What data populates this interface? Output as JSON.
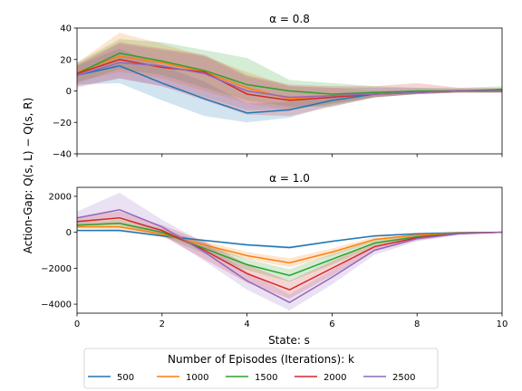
{
  "figure": {
    "ylabel": "Action-Gap: Q(s, L) − Q(s, R)",
    "xlabel": "State: s"
  },
  "legend": {
    "title": "Number of Episodes (Iterations): k",
    "placement": "lower-center"
  },
  "colors": {
    "500": "#1f77b4",
    "1000": "#ff7f0e",
    "1500": "#2ca02c",
    "2000": "#d62728",
    "2500": "#9467bd"
  },
  "chart_data": [
    {
      "type": "line",
      "title": "α = 0.8",
      "xlim": [
        0,
        10
      ],
      "ylim": [
        -40,
        40
      ],
      "xticks": [
        0,
        2,
        4,
        6,
        8,
        10
      ],
      "yticks": [
        -40,
        -20,
        0,
        20,
        40
      ],
      "show_xtick_labels": false,
      "x": [
        0,
        1,
        2,
        3,
        4,
        5,
        6,
        7,
        8,
        9,
        10
      ],
      "series": [
        {
          "name": "500",
          "values": [
            10,
            16,
            5,
            -5,
            -14,
            -12,
            -6,
            -2,
            -1,
            0,
            0
          ],
          "lower": [
            4,
            5,
            -6,
            -16,
            -20,
            -17,
            -9,
            -4,
            -2,
            -1,
            -1
          ],
          "upper": [
            16,
            27,
            16,
            6,
            -8,
            -7,
            -3,
            0,
            0,
            1,
            1
          ]
        },
        {
          "name": "1000",
          "values": [
            12,
            22,
            18,
            12,
            2,
            -5,
            -3,
            -2,
            -1,
            0,
            0
          ],
          "lower": [
            6,
            12,
            8,
            0,
            -8,
            -12,
            -8,
            -4,
            -2,
            -1,
            -1
          ],
          "upper": [
            18,
            37,
            30,
            22,
            12,
            3,
            2,
            0,
            0,
            1,
            1
          ]
        },
        {
          "name": "1500",
          "values": [
            11,
            24,
            19,
            13,
            4,
            0,
            -2,
            -1,
            0,
            0,
            1
          ],
          "lower": [
            5,
            14,
            10,
            2,
            -6,
            -10,
            -10,
            -4,
            -2,
            -1,
            -1
          ],
          "upper": [
            18,
            33,
            31,
            26,
            21,
            7,
            5,
            3,
            2,
            2,
            3
          ]
        },
        {
          "name": "2000",
          "values": [
            11,
            20,
            15,
            12,
            -2,
            -6,
            -4,
            -2,
            -1,
            0,
            0
          ],
          "lower": [
            3,
            8,
            3,
            -6,
            -15,
            -16,
            -10,
            -4,
            -2,
            -1,
            -1
          ],
          "upper": [
            17,
            31,
            27,
            23,
            10,
            4,
            3,
            3,
            5,
            2,
            2
          ]
        },
        {
          "name": "2500",
          "values": [
            10,
            18,
            16,
            11,
            0,
            -4,
            -3,
            -2,
            -1,
            0,
            0
          ],
          "lower": [
            2,
            8,
            3,
            -4,
            -12,
            -12,
            -8,
            -4,
            -2,
            -1,
            -1
          ],
          "upper": [
            16,
            30,
            26,
            22,
            9,
            3,
            2,
            2,
            2,
            1,
            1
          ]
        }
      ]
    },
    {
      "type": "line",
      "title": "α = 1.0",
      "xlim": [
        0,
        10
      ],
      "ylim": [
        -4500,
        2500
      ],
      "xticks": [
        0,
        2,
        4,
        6,
        8,
        10
      ],
      "yticks": [
        -4000,
        -2000,
        0,
        2000
      ],
      "show_xtick_labels": true,
      "x": [
        0,
        1,
        2,
        3,
        4,
        5,
        6,
        7,
        8,
        9,
        10
      ],
      "series": [
        {
          "name": "500",
          "values": [
            100,
            100,
            -200,
            -450,
            -700,
            -850,
            -500,
            -200,
            -80,
            -20,
            0
          ],
          "lower": [
            50,
            40,
            -260,
            -500,
            -760,
            -920,
            -550,
            -240,
            -110,
            -40,
            -10
          ],
          "upper": [
            150,
            160,
            -140,
            -400,
            -640,
            -780,
            -450,
            -160,
            -50,
            0,
            10
          ]
        },
        {
          "name": "1000",
          "values": [
            300,
            300,
            -100,
            -700,
            -1300,
            -1700,
            -1100,
            -400,
            -150,
            -40,
            0
          ],
          "lower": [
            200,
            150,
            -250,
            -900,
            -1500,
            -1950,
            -1300,
            -550,
            -250,
            -80,
            -20
          ],
          "upper": [
            400,
            450,
            50,
            -500,
            -1100,
            -1450,
            -900,
            -250,
            -50,
            0,
            20
          ]
        },
        {
          "name": "1500",
          "values": [
            400,
            500,
            0,
            -900,
            -1800,
            -2400,
            -1500,
            -600,
            -250,
            -50,
            0
          ],
          "lower": [
            250,
            300,
            -200,
            -1200,
            -2100,
            -2750,
            -1800,
            -800,
            -400,
            -100,
            -20
          ],
          "upper": [
            550,
            700,
            200,
            -600,
            -1500,
            -2050,
            -1200,
            -400,
            -100,
            0,
            20
          ]
        },
        {
          "name": "2000",
          "values": [
            600,
            800,
            100,
            -1000,
            -2300,
            -3200,
            -2000,
            -800,
            -300,
            -60,
            0
          ],
          "lower": [
            350,
            450,
            -200,
            -1500,
            -2800,
            -3700,
            -2400,
            -1050,
            -450,
            -120,
            -20
          ],
          "upper": [
            850,
            1150,
            400,
            -500,
            -1800,
            -2700,
            -1600,
            -550,
            -150,
            0,
            20
          ]
        },
        {
          "name": "2500",
          "values": [
            800,
            1250,
            300,
            -1100,
            -2700,
            -3900,
            -2500,
            -1000,
            -350,
            -80,
            0
          ],
          "lower": [
            450,
            800,
            -100,
            -1600,
            -3200,
            -4350,
            -2900,
            -1250,
            -500,
            -150,
            -30
          ],
          "upper": [
            1150,
            2200,
            700,
            -600,
            -2200,
            -3450,
            -2100,
            -750,
            -200,
            0,
            30
          ]
        }
      ]
    }
  ]
}
